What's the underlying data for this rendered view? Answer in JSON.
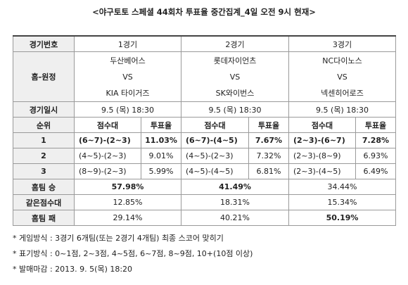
{
  "title": "<야구토토 스페셜 44회차 투표율 중간집계_4일 오전 9시 현재>",
  "table": {
    "header": [
      "경기번호",
      "1경기",
      "2경기",
      "3경기"
    ],
    "home_away": {
      "label": "홈-원정",
      "games": [
        [
          "두산베어스",
          "VS",
          "KIA 타이거즈"
        ],
        [
          "롯데자이언츠",
          "VS",
          "SK와이번스"
        ],
        [
          "NC다이노스",
          "VS",
          "넥센히어로즈"
        ]
      ]
    },
    "date": {
      "label": "경기일시",
      "values": [
        "9.5 (목) 18:30",
        "9.5 (목) 18:30",
        "9.5 (목) 18:30"
      ]
    },
    "rank_header": [
      "순위",
      "점수대",
      "투표율",
      "점수대",
      "투표율",
      "점수대",
      "투표율"
    ],
    "rank_rows": [
      [
        "1",
        "(6~7)-(2~3)",
        "11.03%",
        "(6~7)-(4~5)",
        "7.67%",
        "(2~3)-(6~7)",
        "7.28%"
      ],
      [
        "2",
        "(4~5)-(2~3)",
        "9.01%",
        "(4~5)-(2~3)",
        "7.32%",
        "(2~3)-(8~9)",
        "6.93%"
      ],
      [
        "3",
        "(8~9)-(2~3)",
        "5.99%",
        "(4~5)-(4~5)",
        "6.81%",
        "(2~3)-(4~5)",
        "6.49%"
      ]
    ],
    "outcomes": [
      [
        "홈팀 승",
        "57.98%",
        "41.49%",
        "34.44%"
      ],
      [
        "같은점수대",
        "12.85%",
        "18.31%",
        "15.34%"
      ],
      [
        "홈팀 패",
        "29.14%",
        "40.21%",
        "50.19%"
      ]
    ]
  },
  "notes": [
    "* 게임방식 : 3경기 6개팀(또는 2경기 4개팀) 최종 스코어 맞히기",
    "* 표기방식 : 0~1점, 2~3점, 4~5점, 6~7점, 8~9점, 10+(10점 이상)",
    "* 발매마감 : 2013. 9. 5(목) 18:20"
  ]
}
